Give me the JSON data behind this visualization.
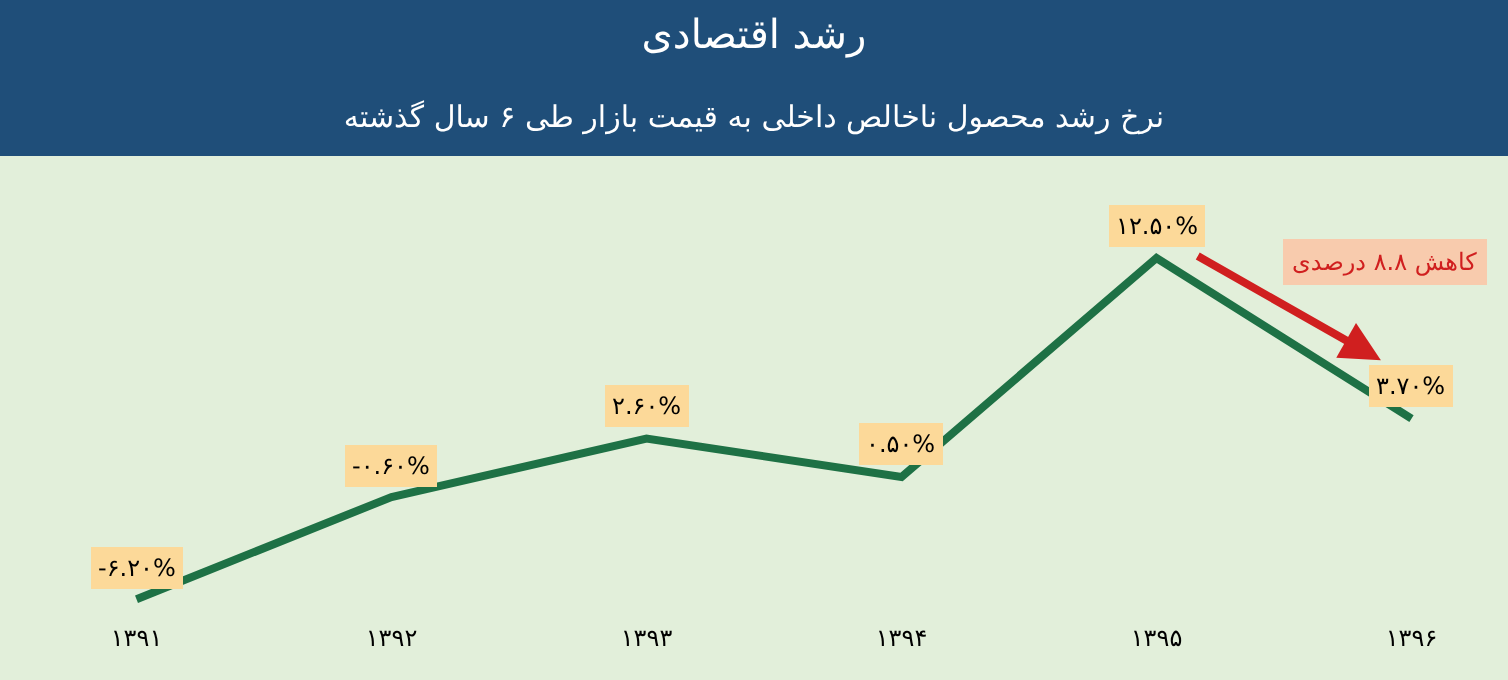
{
  "chart_data": {
    "type": "line",
    "title": "رشد اقتصادی",
    "subtitle": "نرخ رشد محصول ناخالص داخلی به قیمت بازار طی ۶ سال گذشته",
    "categories": [
      "۱۳۹۱",
      "۱۳۹۲",
      "۱۳۹۳",
      "۱۳۹۴",
      "۱۳۹۵",
      "۱۳۹۶"
    ],
    "series": [
      {
        "color": "#1e7145",
        "values": [
          -6.2,
          -0.6,
          2.6,
          0.5,
          12.5,
          3.7
        ],
        "value_labels": [
          "-۶.۲۰%",
          "-۰.۶۰%",
          "۲.۶۰%",
          "۰.۵۰%",
          "۱۲.۵۰%",
          "۳.۷۰%"
        ]
      }
    ],
    "annotations": [
      "کاهش ۸.۸ درصدی"
    ],
    "line_style": "solid",
    "grid": false
  }
}
